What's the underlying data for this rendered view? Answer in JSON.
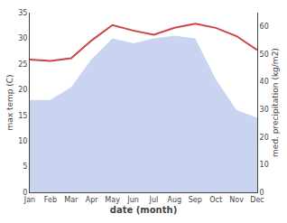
{
  "chart_data": {
    "type": "line",
    "categories": [
      "Jan",
      "Feb",
      "Mar",
      "Apr",
      "May",
      "Jun",
      "Jul",
      "Aug",
      "Sep",
      "Oct",
      "Nov",
      "Dec"
    ],
    "xlabel": "date (month)",
    "ylabel": "max temp (C)",
    "y2label": "med. precipitation (kg/m2)",
    "series": [
      {
        "type": "area",
        "color": "#c8d4f0",
        "values": [
          18.0,
          18.0,
          20.5,
          26.0,
          30.0,
          29.0,
          30.0,
          30.5,
          30.0,
          22.0,
          16.0,
          14.5
        ]
      },
      {
        "type": "line",
        "color": "#cc4444",
        "axis": "y2",
        "values": [
          48.0,
          47.5,
          48.5,
          55.0,
          60.5,
          58.5,
          57.0,
          59.5,
          61.0,
          59.5,
          56.5,
          51.5
        ]
      }
    ],
    "ylim": [
      0,
      35
    ],
    "yticks": [
      0,
      5,
      10,
      15,
      20,
      25,
      30,
      35
    ],
    "y2lim": [
      0,
      65
    ],
    "y2ticks": [
      0,
      10,
      20,
      30,
      40,
      50,
      60
    ],
    "grid": false
  }
}
